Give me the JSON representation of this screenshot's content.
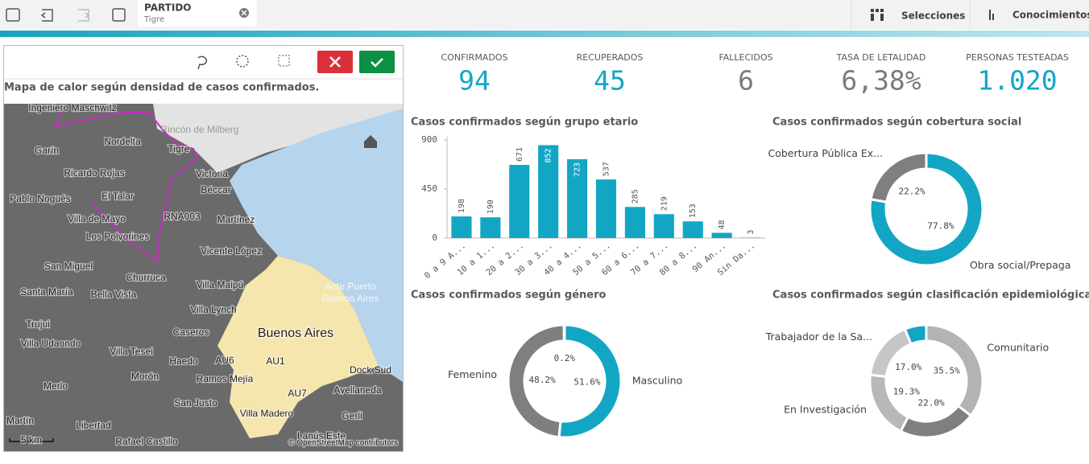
{
  "toolbar": {
    "selection_field": "PARTIDO",
    "selection_value": "Tigre",
    "buttons": [
      "Selecciones",
      "Conocimientos"
    ]
  },
  "kpis": [
    {
      "label": "CONFIRMADOS",
      "value": "94",
      "color": "#13a6c4"
    },
    {
      "label": "RECUPERADOS",
      "value": "45",
      "color": "#13a6c4"
    },
    {
      "label": "FALLECIDOS",
      "value": "6",
      "color": "#7a7a7a"
    },
    {
      "label": "TASA DE LETALIDAD",
      "value": "6,38%",
      "color": "#7a7a7a"
    },
    {
      "label": "PERSONAS TESTEADAS",
      "value": "1.020",
      "color": "#13a6c4"
    }
  ],
  "map": {
    "title": "Mapa de calor según densidad de casos confirmados.",
    "labels": [
      "Ingeniero Maschwitz",
      "Rincón de Milberg",
      "Garín",
      "Nordelta",
      "Tigre",
      "Victoria",
      "Ricardo Rojas",
      "Béccar",
      "Pablo Nogués",
      "El Talar",
      "Villa de Mayo",
      "RNA003",
      "Martínez",
      "Los Polvorines",
      "San Miguel",
      "Vicente López",
      "Churruca",
      "Santa María",
      "Bella Vista",
      "Villa Maipú",
      "Ante Puerto",
      "Buenos Aires",
      "Villa Lynch",
      "Trujui",
      "Caseros",
      "Buenos Aires",
      "Villa Udaondo",
      "Villa Tesei",
      "Haedo",
      "AU6",
      "AU1",
      "Dock Sud",
      "Morón",
      "Ramos Mejía",
      "Merlo",
      "AU7",
      "Avellaneda",
      "San Justo",
      "Villa Madero",
      "Gerli",
      "Martín",
      "Libertad",
      "Rafael Castillo",
      "Lanús Este"
    ],
    "scale": "5 km",
    "attribution": "© OpenStreetMap contributors"
  },
  "chart_data": [
    {
      "type": "bar",
      "title": "Casos confirmados según grupo etario",
      "categories": [
        "0 a 9 A...",
        "10 a 1...",
        "20 a 2...",
        "30 a 3...",
        "40 a 4...",
        "50 a 5...",
        "60 a 6...",
        "70 a 7...",
        "80 a 8...",
        "90 An...",
        "Sin Da..."
      ],
      "values": [
        198,
        190,
        671,
        852,
        723,
        537,
        285,
        219,
        153,
        48,
        3
      ],
      "color": "#13a6c4",
      "ylim": [
        0,
        900
      ],
      "yticks": [
        0,
        450,
        900
      ],
      "grid": false
    },
    {
      "type": "donut",
      "title": "Casos confirmados según cobertura social",
      "categories": [
        "Obra social/Prepaga",
        "Cobertura Pública Ex..."
      ],
      "values": [
        77.8,
        22.2
      ],
      "value_labels": [
        "77.8%",
        "22.2%"
      ],
      "colors": [
        "#13a6c4",
        "#7f7f7f"
      ]
    },
    {
      "type": "donut",
      "title": "Casos confirmados según género",
      "categories": [
        "Masculino",
        "Femenino",
        null
      ],
      "values": [
        51.6,
        48.2,
        0.2
      ],
      "value_labels": [
        "51.6%",
        "48.2%",
        "0.2%"
      ],
      "colors": [
        "#13a6c4",
        "#7f7f7f",
        "#bdbdbd"
      ]
    },
    {
      "type": "donut",
      "title": "Casos confirmados según clasificación epidemiológica",
      "categories": [
        "Comunitario",
        null,
        "En Investigación",
        "Trabajador de la Sa...",
        null
      ],
      "values": [
        35.5,
        22.0,
        19.3,
        17.0,
        6.2
      ],
      "value_labels": [
        "35.5%",
        "22.0%",
        "19.3%",
        "17.0%",
        null
      ],
      "colors": [
        "#b3b3b3",
        "#7f7f7f",
        "#b8b8b8",
        "#c6c6c6",
        "#13a6c4"
      ]
    }
  ]
}
